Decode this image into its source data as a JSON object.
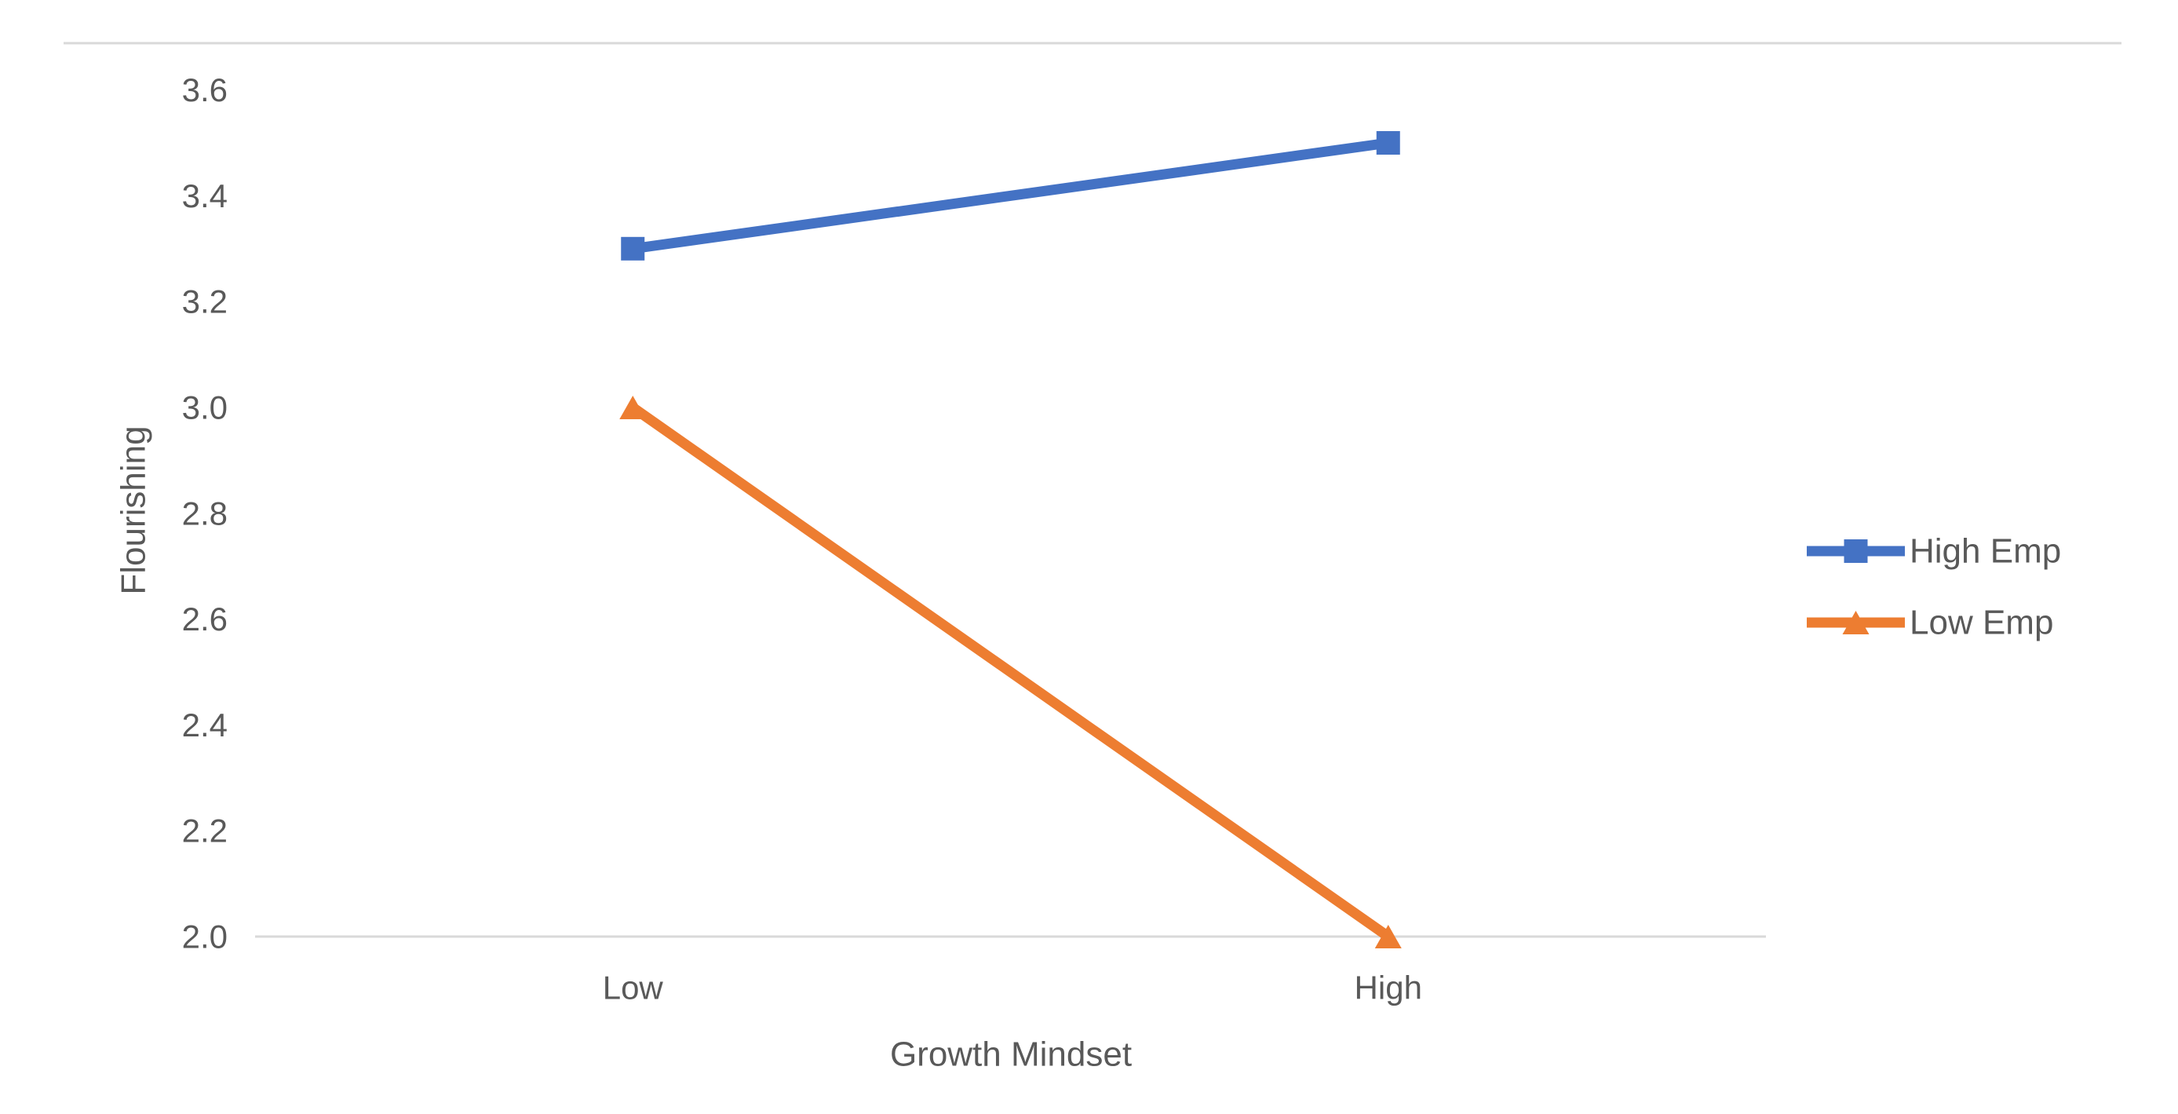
{
  "figure": {
    "background": "#ffffff"
  },
  "chart_data": {
    "type": "line",
    "title": "",
    "categories": [
      "Low",
      "High"
    ],
    "series": [
      {
        "name": "High Emp",
        "values": [
          3.3,
          3.5
        ],
        "color": "#4472C4",
        "marker": "square"
      },
      {
        "name": "Low Emp",
        "values": [
          3.0,
          2.0
        ],
        "color": "#ED7D31",
        "marker": "triangle"
      }
    ],
    "xlabel": "Growth Mindset",
    "ylabel": "Flourishing",
    "ylim": [
      2.0,
      3.6
    ],
    "ytick_step": 0.2,
    "y_tick_labels": [
      "3.6",
      "3.4",
      "3.2",
      "3.0",
      "2.8",
      "2.6",
      "2.4",
      "2.2",
      "2.0"
    ],
    "grid": false,
    "legend_position": "right",
    "axis_line_color": "#D9D9D9",
    "text_color": "#595959"
  }
}
